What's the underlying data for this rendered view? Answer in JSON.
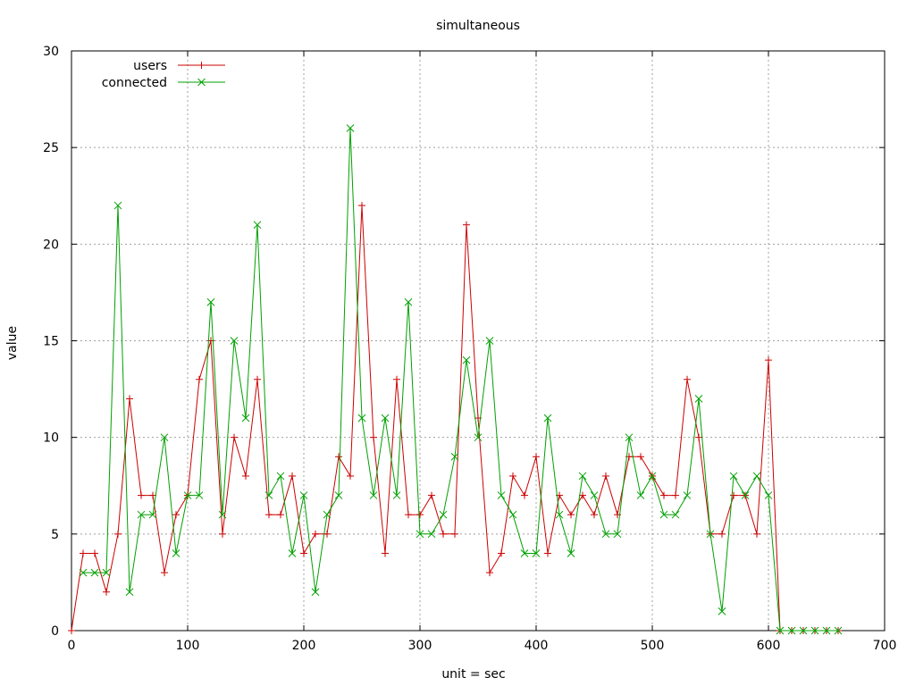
{
  "chart_data": {
    "type": "line",
    "title": "simultaneous",
    "xlabel": "unit = sec",
    "ylabel": "value",
    "xlim": [
      0,
      700
    ],
    "ylim": [
      0,
      30
    ],
    "x_ticks": [
      "0",
      "100",
      "200",
      "300",
      "400",
      "500",
      "600",
      "700"
    ],
    "y_ticks": [
      "0",
      "5",
      "10",
      "15",
      "20",
      "25",
      "30"
    ],
    "grid": true,
    "legend_position": "top-left",
    "x": [
      0,
      10,
      20,
      30,
      40,
      50,
      60,
      70,
      80,
      90,
      100,
      110,
      120,
      130,
      140,
      150,
      160,
      170,
      180,
      190,
      200,
      210,
      220,
      230,
      240,
      250,
      260,
      270,
      280,
      290,
      300,
      310,
      320,
      330,
      340,
      350,
      360,
      370,
      380,
      390,
      400,
      410,
      420,
      430,
      440,
      450,
      460,
      470,
      480,
      490,
      500,
      510,
      520,
      530,
      540,
      550,
      560,
      570,
      580,
      590,
      600,
      610,
      620,
      630,
      640,
      650,
      660
    ],
    "series": [
      {
        "name": "users",
        "color": "#cc0000",
        "marker": "plus",
        "values": [
          0,
          4,
          4,
          2,
          5,
          12,
          7,
          7,
          3,
          6,
          7,
          13,
          15,
          5,
          10,
          8,
          13,
          6,
          6,
          8,
          4,
          5,
          5,
          9,
          8,
          22,
          10,
          4,
          13,
          6,
          6,
          7,
          5,
          5,
          21,
          11,
          3,
          4,
          8,
          7,
          9,
          4,
          7,
          6,
          7,
          6,
          8,
          6,
          9,
          9,
          8,
          7,
          7,
          13,
          10,
          5,
          5,
          7,
          7,
          5,
          14,
          0,
          0,
          0,
          0,
          0,
          0
        ]
      },
      {
        "name": "connected",
        "color": "#00a000",
        "marker": "cross",
        "values": [
          null,
          3,
          3,
          3,
          22,
          2,
          6,
          6,
          10,
          4,
          7,
          7,
          17,
          6,
          15,
          11,
          21,
          7,
          8,
          4,
          7,
          2,
          6,
          7,
          26,
          11,
          7,
          11,
          7,
          17,
          5,
          5,
          6,
          9,
          14,
          10,
          15,
          7,
          6,
          4,
          4,
          11,
          6,
          4,
          8,
          7,
          5,
          5,
          10,
          7,
          8,
          6,
          6,
          7,
          12,
          5,
          1,
          8,
          7,
          8,
          7,
          0,
          0,
          0,
          0,
          0,
          0
        ]
      }
    ]
  }
}
